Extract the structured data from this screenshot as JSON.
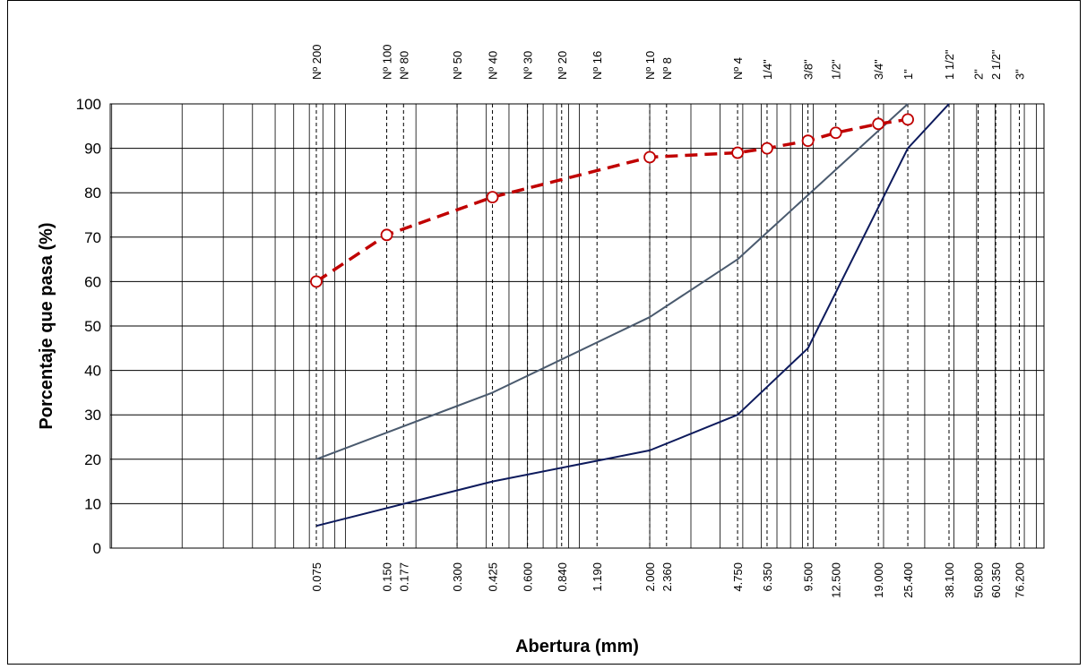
{
  "chart_data": {
    "type": "line",
    "title": "",
    "xlabel": "Abertura (mm)",
    "ylabel": "Porcentaje que pasa (%)",
    "x_scale": "log",
    "ylim": [
      0,
      100
    ],
    "y_ticks": [
      "0",
      "10",
      "20",
      "30",
      "40",
      "50",
      "60",
      "70",
      "80",
      "90",
      "100"
    ],
    "grid": true,
    "sieves": [
      {
        "name": "Nº 200",
        "opening": "0.075",
        "mm": 0.075
      },
      {
        "name": "Nº 100",
        "opening": "0.150",
        "mm": 0.15
      },
      {
        "name": "Nº 80",
        "opening": "0.177",
        "mm": 0.177
      },
      {
        "name": "Nº 50",
        "opening": "0.300",
        "mm": 0.3
      },
      {
        "name": "Nº 40",
        "opening": "0.425",
        "mm": 0.425
      },
      {
        "name": "Nº 30",
        "opening": "0.600",
        "mm": 0.6
      },
      {
        "name": "Nº 20",
        "opening": "0.840",
        "mm": 0.84
      },
      {
        "name": "Nº 16",
        "opening": "1.190",
        "mm": 1.19
      },
      {
        "name": "Nº 10",
        "opening": "2.000",
        "mm": 2.0
      },
      {
        "name": "Nº 8",
        "opening": "2.360",
        "mm": 2.36
      },
      {
        "name": "Nº 4",
        "opening": "4.750",
        "mm": 4.75
      },
      {
        "name": "1/4\"",
        "opening": "6.350",
        "mm": 6.35
      },
      {
        "name": "3/8\"",
        "opening": "9.500",
        "mm": 9.5
      },
      {
        "name": "1/2\"",
        "opening": "12.500",
        "mm": 12.5
      },
      {
        "name": "3/4\"",
        "opening": "19.000",
        "mm": 19.0
      },
      {
        "name": "1\"",
        "opening": "25.400",
        "mm": 25.4
      },
      {
        "name": "1 1/2\"",
        "opening": "38.100",
        "mm": 38.1
      },
      {
        "name": "2\"",
        "opening": "50.800",
        "mm": 50.8
      },
      {
        "name": "2 1/2\"",
        "opening": "60.350",
        "mm": 60.35
      },
      {
        "name": "3\"",
        "opening": "76.200",
        "mm": 76.2
      }
    ],
    "series": [
      {
        "color": "#4a5a6e",
        "style": "solid",
        "marker": "none",
        "x": [
          0.075,
          0.425,
          2.0,
          4.75,
          25.4
        ],
        "y": [
          20,
          35,
          52,
          65,
          100
        ]
      },
      {
        "color": "#0d1a5c",
        "style": "solid",
        "marker": "none",
        "x": [
          0.075,
          0.425,
          2.0,
          4.75,
          9.5,
          25.4,
          38.1
        ],
        "y": [
          5,
          15,
          22,
          30,
          45,
          90,
          100
        ]
      },
      {
        "color": "#c00000",
        "style": "dashed",
        "marker": "circle",
        "x": [
          0.075,
          0.15,
          0.425,
          2.0,
          4.75,
          6.35,
          9.5,
          12.5,
          19.0,
          25.4
        ],
        "y": [
          60,
          70.5,
          79,
          88,
          89,
          90,
          91.7,
          93.5,
          95.5,
          96.5
        ]
      }
    ]
  }
}
